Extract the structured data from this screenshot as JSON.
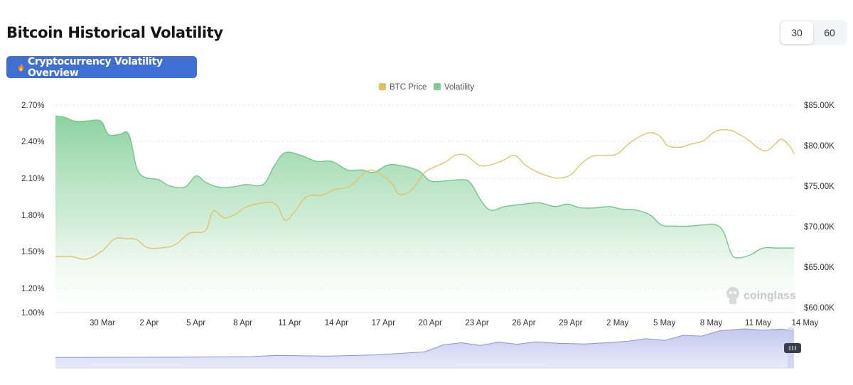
{
  "header": {
    "title": "Bitcoin Historical Volatility",
    "overview_button": "Cryptocurrency Volatility Overview",
    "periods": [
      "30",
      "60"
    ],
    "active_period": "30"
  },
  "watermark": "coinglass",
  "colors": {
    "btc_price": "#e2c060",
    "volatility": "#7dcd94",
    "button": "#3f6fd2"
  },
  "chart_data": {
    "type": "line",
    "x_labels": [
      "30 Mar",
      "2 Apr",
      "5 Apr",
      "8 Apr",
      "11 Apr",
      "14 Apr",
      "17 Apr",
      "20 Apr",
      "23 Apr",
      "26 Apr",
      "29 Apr",
      "2 May",
      "5 May",
      "8 May",
      "11 May",
      "14 May"
    ],
    "legend": [
      "BTC Price",
      "Volatility"
    ],
    "legend_position": "top-center",
    "left_axis": {
      "labels": [
        "2.70%",
        "2.40%",
        "2.10%",
        "1.80%",
        "1.50%",
        "1.20%",
        "1.00%"
      ],
      "min": 1.0,
      "max": 2.7
    },
    "right_axis": {
      "labels": [
        "$85.00K",
        "$80.00K",
        "$75.00K",
        "$70.00K",
        "$65.00K",
        "$60.00K"
      ],
      "min": 60000,
      "max": 85000
    },
    "grid": "horizontal dashed",
    "x_start": "27 Mar",
    "x_end": "16 May",
    "series": [
      {
        "name": "Volatility",
        "axis": "left",
        "style": "area",
        "points": [
          [
            0,
            2.61
          ],
          [
            0.6,
            2.6
          ],
          [
            1.2,
            2.57
          ],
          [
            2.0,
            2.57
          ],
          [
            2.9,
            2.57
          ],
          [
            3.4,
            2.46
          ],
          [
            4.1,
            2.46
          ],
          [
            4.7,
            2.46
          ],
          [
            5.2,
            2.19
          ],
          [
            5.7,
            2.11
          ],
          [
            6.6,
            2.09
          ],
          [
            7.3,
            2.04
          ],
          [
            8.3,
            2.03
          ],
          [
            9.0,
            2.12
          ],
          [
            9.6,
            2.07
          ],
          [
            10.4,
            2.03
          ],
          [
            11.3,
            2.03
          ],
          [
            12.2,
            2.05
          ],
          [
            13.3,
            2.05
          ],
          [
            14.0,
            2.2
          ],
          [
            14.7,
            2.31
          ],
          [
            15.7,
            2.29
          ],
          [
            16.7,
            2.24
          ],
          [
            17.7,
            2.24
          ],
          [
            18.7,
            2.17
          ],
          [
            19.6,
            2.17
          ],
          [
            20.4,
            2.15
          ],
          [
            21.3,
            2.21
          ],
          [
            22.3,
            2.2
          ],
          [
            23.3,
            2.16
          ],
          [
            24.0,
            2.08
          ],
          [
            25.0,
            2.08
          ],
          [
            26.1,
            2.09
          ],
          [
            26.6,
            2.06
          ],
          [
            27.3,
            1.91
          ],
          [
            27.9,
            1.84
          ],
          [
            28.8,
            1.87
          ],
          [
            30.0,
            1.89
          ],
          [
            31.0,
            1.9
          ],
          [
            32.0,
            1.87
          ],
          [
            32.8,
            1.89
          ],
          [
            33.6,
            1.86
          ],
          [
            34.6,
            1.86
          ],
          [
            35.5,
            1.87
          ],
          [
            36.2,
            1.85
          ],
          [
            37.2,
            1.84
          ],
          [
            38.1,
            1.8
          ],
          [
            38.8,
            1.72
          ],
          [
            39.6,
            1.71
          ],
          [
            40.6,
            1.71
          ],
          [
            41.5,
            1.72
          ],
          [
            42.3,
            1.72
          ],
          [
            42.8,
            1.66
          ],
          [
            43.3,
            1.48
          ],
          [
            43.8,
            1.45
          ],
          [
            44.6,
            1.48
          ],
          [
            45.3,
            1.53
          ],
          [
            46.2,
            1.53
          ],
          [
            47.3,
            1.53
          ]
        ]
      },
      {
        "name": "BTC Price",
        "axis": "right",
        "style": "line",
        "points": [
          [
            0,
            66.3
          ],
          [
            1.0,
            66.3
          ],
          [
            2.0,
            66.0
          ],
          [
            3.0,
            67.0
          ],
          [
            3.8,
            68.5
          ],
          [
            4.6,
            68.5
          ],
          [
            5.2,
            68.4
          ],
          [
            5.9,
            67.4
          ],
          [
            6.9,
            67.4
          ],
          [
            7.7,
            67.8
          ],
          [
            8.6,
            69.2
          ],
          [
            9.6,
            69.5
          ],
          [
            10.1,
            71.9
          ],
          [
            10.8,
            71.1
          ],
          [
            11.5,
            71.5
          ],
          [
            12.2,
            72.4
          ],
          [
            13.2,
            72.9
          ],
          [
            14.1,
            72.8
          ],
          [
            14.7,
            70.8
          ],
          [
            15.3,
            71.8
          ],
          [
            16.1,
            73.7
          ],
          [
            17.1,
            73.9
          ],
          [
            17.9,
            74.6
          ],
          [
            18.8,
            74.9
          ],
          [
            19.6,
            76.3
          ],
          [
            20.2,
            77.0
          ],
          [
            21.0,
            76.2
          ],
          [
            21.6,
            75.2
          ],
          [
            22.0,
            74.0
          ],
          [
            22.8,
            74.5
          ],
          [
            23.6,
            76.6
          ],
          [
            24.2,
            77.3
          ],
          [
            25.0,
            78.0
          ],
          [
            25.6,
            78.8
          ],
          [
            26.3,
            78.8
          ],
          [
            27.1,
            77.6
          ],
          [
            27.8,
            77.6
          ],
          [
            28.7,
            78.2
          ],
          [
            29.4,
            78.8
          ],
          [
            30.1,
            77.6
          ],
          [
            30.8,
            76.8
          ],
          [
            31.6,
            76.2
          ],
          [
            32.3,
            76.0
          ],
          [
            33.0,
            76.4
          ],
          [
            33.7,
            77.8
          ],
          [
            34.4,
            78.7
          ],
          [
            35.3,
            78.8
          ],
          [
            36.0,
            79.0
          ],
          [
            36.7,
            80.2
          ],
          [
            37.5,
            81.2
          ],
          [
            38.2,
            81.6
          ],
          [
            38.8,
            81.0
          ],
          [
            39.2,
            80.0
          ],
          [
            40.0,
            79.8
          ],
          [
            40.7,
            80.2
          ],
          [
            41.5,
            80.6
          ],
          [
            42.3,
            81.8
          ],
          [
            43.2,
            81.9
          ],
          [
            43.7,
            81.5
          ],
          [
            44.3,
            80.8
          ],
          [
            45.1,
            79.6
          ],
          [
            45.6,
            79.4
          ],
          [
            46.1,
            80.2
          ],
          [
            46.5,
            80.8
          ],
          [
            47.0,
            80.0
          ],
          [
            47.3,
            79.0
          ]
        ]
      }
    ],
    "navigator": {
      "points": [
        [
          0,
          1.6
        ],
        [
          10,
          1.7
        ],
        [
          16,
          2.0
        ],
        [
          18,
          2.6
        ],
        [
          22,
          2.2
        ],
        [
          26,
          2.8
        ],
        [
          28,
          3.5
        ],
        [
          30,
          4.2
        ],
        [
          31.5,
          7.5
        ],
        [
          33,
          8.5
        ],
        [
          34.5,
          7.2
        ],
        [
          36,
          8.8
        ],
        [
          37.5,
          7.8
        ],
        [
          39,
          8.9
        ],
        [
          41,
          8.2
        ],
        [
          43,
          7.9
        ],
        [
          45,
          8.6
        ],
        [
          46.5,
          9.2
        ],
        [
          48,
          10.4
        ],
        [
          49.5,
          9.6
        ],
        [
          51,
          12.0
        ],
        [
          52.5,
          11.6
        ],
        [
          54,
          14.2
        ],
        [
          56,
          15.0
        ],
        [
          57.5,
          14.4
        ],
        [
          59,
          14.9
        ],
        [
          60,
          14.0
        ]
      ]
    }
  }
}
